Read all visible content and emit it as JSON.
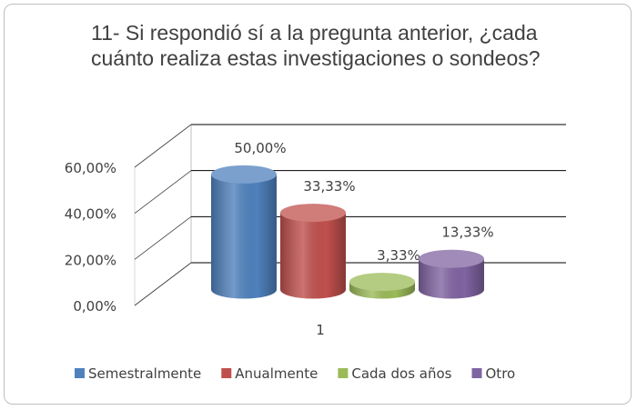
{
  "chart_data": {
    "type": "bar3d",
    "title": "11-  Si respondió sí a la pregunta anterior, ¿cada cuánto realiza estas investigaciones o sondeos?",
    "categories": [
      "1"
    ],
    "series": [
      {
        "name": "Semestralmente",
        "color": "#4f81bd",
        "values": [
          50
        ],
        "value_labels": [
          "50,00%"
        ]
      },
      {
        "name": "Anualmente",
        "color": "#c0504d",
        "values": [
          33.33
        ],
        "value_labels": [
          "33,33%"
        ]
      },
      {
        "name": "Cada dos años",
        "color": "#9bbb59",
        "values": [
          3.33
        ],
        "value_labels": [
          "3,33%"
        ]
      },
      {
        "name": "Otro",
        "color": "#8064a2",
        "values": [
          13.33
        ],
        "value_labels": [
          "13,33%"
        ]
      }
    ],
    "ylim": [
      0,
      60
    ],
    "yticks": [
      {
        "value": 0,
        "label": "0,00%"
      },
      {
        "value": 20,
        "label": "20,00%"
      },
      {
        "value": 40,
        "label": "40,00%"
      },
      {
        "value": 60,
        "label": "60,00%"
      }
    ],
    "grid": true,
    "legend": "bottom"
  }
}
